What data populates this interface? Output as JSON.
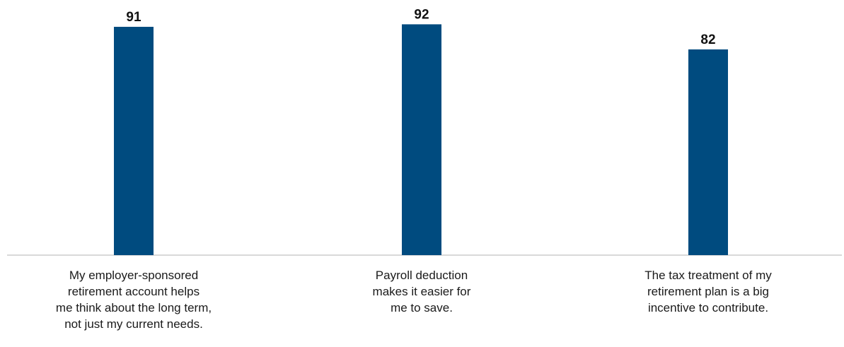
{
  "chart_data": {
    "type": "bar",
    "categories": [
      "My employer-sponsored\nretirement account helps\nme think about the long term,\nnot just my current needs.",
      "Payroll deduction\nmakes it easier for\nme to save.",
      "The tax treatment of my\nretirement plan is a big\nincentive to contribute."
    ],
    "values": [
      91,
      92,
      82
    ],
    "data_labels": [
      "91",
      "92",
      "82"
    ],
    "title": "",
    "xlabel": "",
    "ylabel": "",
    "ylim": [
      0,
      100
    ],
    "grid": false,
    "legend": "none",
    "colors": {
      "bar": "#004b7f",
      "baseline": "#d9d9d9",
      "label_text": "#1a1a1a"
    }
  }
}
